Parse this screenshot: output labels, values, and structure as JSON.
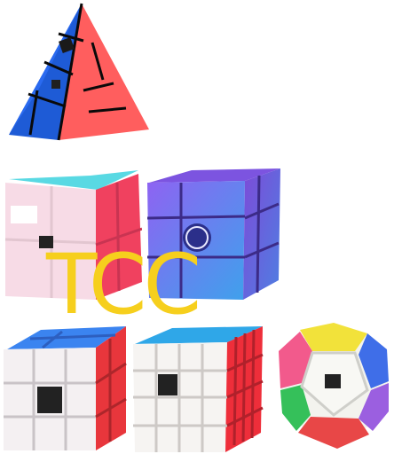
{
  "overlay": {
    "text": "TCC"
  },
  "colors": {
    "overlay_text": "#f6cf1d",
    "background": "#ffffff"
  },
  "products": [
    {
      "icon": "pyraminx-puzzle-icon"
    },
    {
      "icon": "2x2-cube-icon"
    },
    {
      "icon": "mirror-cube-icon"
    },
    {
      "icon": "3x3-cube-icon"
    },
    {
      "icon": "4x4-cube-icon"
    },
    {
      "icon": "megaminx-puzzle-icon"
    }
  ]
}
